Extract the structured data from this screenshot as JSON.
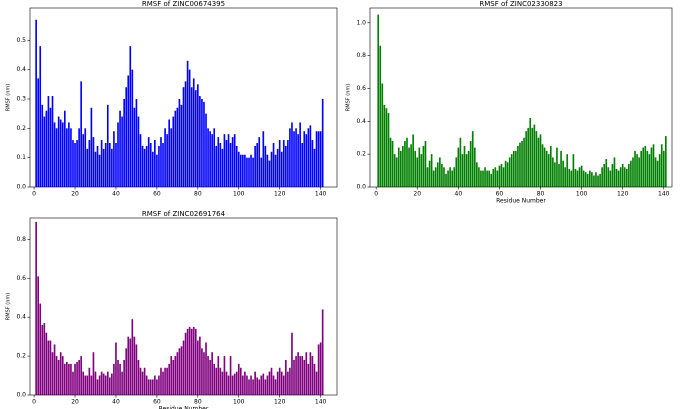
{
  "chart_data": [
    {
      "type": "bar",
      "title": "RMSF of ZINC00674395",
      "ylabel": "RMSF (nm)",
      "color": "#0000ff",
      "x": [
        1,
        2,
        3,
        4,
        5,
        6,
        7,
        8,
        9,
        10,
        11,
        12,
        13,
        14,
        15,
        16,
        17,
        18,
        19,
        20,
        21,
        22,
        23,
        24,
        25,
        26,
        27,
        28,
        29,
        30,
        31,
        32,
        33,
        34,
        35,
        36,
        37,
        38,
        39,
        40,
        41,
        42,
        43,
        44,
        45,
        46,
        47,
        48,
        49,
        50,
        51,
        52,
        53,
        54,
        55,
        56,
        57,
        58,
        59,
        60,
        61,
        62,
        63,
        64,
        65,
        66,
        67,
        68,
        69,
        70,
        71,
        72,
        73,
        74,
        75,
        76,
        77,
        78,
        79,
        80,
        81,
        82,
        83,
        84,
        85,
        86,
        87,
        88,
        89,
        90,
        91,
        92,
        93,
        94,
        95,
        96,
        97,
        98,
        99,
        100,
        101,
        102,
        103,
        104,
        105,
        106,
        107,
        108,
        109,
        110,
        111,
        112,
        113,
        114,
        115,
        116,
        117,
        118,
        119,
        120,
        121,
        122,
        123,
        124,
        125,
        126,
        127,
        128,
        129,
        130,
        131,
        132,
        133,
        134,
        135,
        136,
        137,
        138,
        139,
        140,
        141
      ],
      "values": [
        0.57,
        0.37,
        0.48,
        0.28,
        0.24,
        0.26,
        0.31,
        0.27,
        0.31,
        0.22,
        0.2,
        0.24,
        0.23,
        0.22,
        0.26,
        0.2,
        0.22,
        0.2,
        0.16,
        0.15,
        0.16,
        0.2,
        0.36,
        0.18,
        0.2,
        0.13,
        0.16,
        0.27,
        0.17,
        0.12,
        0.14,
        0.11,
        0.16,
        0.13,
        0.15,
        0.28,
        0.15,
        0.13,
        0.19,
        0.15,
        0.22,
        0.26,
        0.24,
        0.3,
        0.34,
        0.38,
        0.48,
        0.4,
        0.27,
        0.3,
        0.24,
        0.18,
        0.14,
        0.13,
        0.14,
        0.17,
        0.15,
        0.12,
        0.16,
        0.11,
        0.14,
        0.17,
        0.15,
        0.2,
        0.18,
        0.23,
        0.2,
        0.24,
        0.26,
        0.27,
        0.3,
        0.28,
        0.34,
        0.36,
        0.43,
        0.4,
        0.34,
        0.37,
        0.33,
        0.35,
        0.31,
        0.3,
        0.29,
        0.25,
        0.2,
        0.19,
        0.18,
        0.2,
        0.14,
        0.17,
        0.15,
        0.13,
        0.18,
        0.16,
        0.18,
        0.15,
        0.17,
        0.18,
        0.14,
        0.12,
        0.11,
        0.11,
        0.11,
        0.1,
        0.1,
        0.11,
        0.1,
        0.14,
        0.15,
        0.17,
        0.1,
        0.19,
        0.14,
        0.11,
        0.09,
        0.12,
        0.15,
        0.11,
        0.13,
        0.16,
        0.12,
        0.16,
        0.14,
        0.16,
        0.2,
        0.22,
        0.19,
        0.2,
        0.18,
        0.22,
        0.15,
        0.19,
        0.18,
        0.2,
        0.21,
        0.16,
        0.13,
        0.19,
        0.19,
        0.19,
        0.3
      ],
      "xlim": [
        -2,
        148
      ],
      "xticks": [
        0,
        20,
        40,
        60,
        80,
        100,
        120,
        140
      ],
      "ylim": [
        0,
        0.61
      ],
      "yticks": [
        {
          "value": 0,
          "label": "0.0"
        },
        0.1,
        0.2,
        0.3,
        0.4,
        0.5
      ]
    },
    {
      "type": "bar",
      "title": "RMSF of ZINC02330823",
      "ylabel": "RMSF (nm)",
      "xlabel": "Residue Number",
      "color": "#008000",
      "x": [
        1,
        2,
        3,
        4,
        5,
        6,
        7,
        8,
        9,
        10,
        11,
        12,
        13,
        14,
        15,
        16,
        17,
        18,
        19,
        20,
        21,
        22,
        23,
        24,
        25,
        26,
        27,
        28,
        29,
        30,
        31,
        32,
        33,
        34,
        35,
        36,
        37,
        38,
        39,
        40,
        41,
        42,
        43,
        44,
        45,
        46,
        47,
        48,
        49,
        50,
        51,
        52,
        53,
        54,
        55,
        56,
        57,
        58,
        59,
        60,
        61,
        62,
        63,
        64,
        65,
        66,
        67,
        68,
        69,
        70,
        71,
        72,
        73,
        74,
        75,
        76,
        77,
        78,
        79,
        80,
        81,
        82,
        83,
        84,
        85,
        86,
        87,
        88,
        89,
        90,
        91,
        92,
        93,
        94,
        95,
        96,
        97,
        98,
        99,
        100,
        101,
        102,
        103,
        104,
        105,
        106,
        107,
        108,
        109,
        110,
        111,
        112,
        113,
        114,
        115,
        116,
        117,
        118,
        119,
        120,
        121,
        122,
        123,
        124,
        125,
        126,
        127,
        128,
        129,
        130,
        131,
        132,
        133,
        134,
        135,
        136,
        137,
        138,
        139,
        140,
        141
      ],
      "values": [
        1.05,
        0.86,
        0.63,
        0.5,
        0.48,
        0.45,
        0.3,
        0.28,
        0.2,
        0.18,
        0.24,
        0.22,
        0.25,
        0.28,
        0.3,
        0.24,
        0.26,
        0.32,
        0.22,
        0.18,
        0.24,
        0.2,
        0.25,
        0.28,
        0.12,
        0.16,
        0.2,
        0.1,
        0.12,
        0.15,
        0.18,
        0.14,
        0.12,
        0.08,
        0.1,
        0.12,
        0.1,
        0.12,
        0.18,
        0.24,
        0.3,
        0.2,
        0.25,
        0.2,
        0.22,
        0.28,
        0.34,
        0.24,
        0.15,
        0.12,
        0.1,
        0.1,
        0.12,
        0.1,
        0.1,
        0.08,
        0.11,
        0.12,
        0.1,
        0.13,
        0.14,
        0.12,
        0.16,
        0.15,
        0.18,
        0.2,
        0.22,
        0.22,
        0.25,
        0.27,
        0.28,
        0.3,
        0.34,
        0.36,
        0.42,
        0.36,
        0.38,
        0.34,
        0.3,
        0.32,
        0.26,
        0.24,
        0.22,
        0.2,
        0.25,
        0.18,
        0.15,
        0.24,
        0.14,
        0.22,
        0.16,
        0.12,
        0.2,
        0.11,
        0.1,
        0.2,
        0.11,
        0.1,
        0.12,
        0.13,
        0.1,
        0.09,
        0.08,
        0.1,
        0.09,
        0.07,
        0.09,
        0.07,
        0.08,
        0.12,
        0.14,
        0.17,
        0.12,
        0.1,
        0.14,
        0.18,
        0.11,
        0.1,
        0.12,
        0.14,
        0.12,
        0.11,
        0.14,
        0.16,
        0.18,
        0.22,
        0.2,
        0.18,
        0.22,
        0.24,
        0.25,
        0.22,
        0.2,
        0.24,
        0.26,
        0.18,
        0.16,
        0.2,
        0.26,
        0.22,
        0.31
      ],
      "xlim": [
        -3,
        144
      ],
      "xticks": [
        0,
        20,
        40,
        60,
        80,
        100,
        120,
        140
      ],
      "ylim": [
        0,
        1.09
      ],
      "yticks": [
        {
          "value": 0,
          "label": "0.0"
        },
        0.2,
        0.4,
        0.6,
        0.8,
        {
          "value": 1,
          "label": "1.0"
        }
      ]
    },
    {
      "type": "bar",
      "title": "RMSF of ZINC02691764",
      "ylabel": "RMSF (nm)",
      "xlabel": "Residue Number",
      "color": "#800080",
      "x": [
        1,
        2,
        3,
        4,
        5,
        6,
        7,
        8,
        9,
        10,
        11,
        12,
        13,
        14,
        15,
        16,
        17,
        18,
        19,
        20,
        21,
        22,
        23,
        24,
        25,
        26,
        27,
        28,
        29,
        30,
        31,
        32,
        33,
        34,
        35,
        36,
        37,
        38,
        39,
        40,
        41,
        42,
        43,
        44,
        45,
        46,
        47,
        48,
        49,
        50,
        51,
        52,
        53,
        54,
        55,
        56,
        57,
        58,
        59,
        60,
        61,
        62,
        63,
        64,
        65,
        66,
        67,
        68,
        69,
        70,
        71,
        72,
        73,
        74,
        75,
        76,
        77,
        78,
        79,
        80,
        81,
        82,
        83,
        84,
        85,
        86,
        87,
        88,
        89,
        90,
        91,
        92,
        93,
        94,
        95,
        96,
        97,
        98,
        99,
        100,
        101,
        102,
        103,
        104,
        105,
        106,
        107,
        108,
        109,
        110,
        111,
        112,
        113,
        114,
        115,
        116,
        117,
        118,
        119,
        120,
        121,
        122,
        123,
        124,
        125,
        126,
        127,
        128,
        129,
        130,
        131,
        132,
        133,
        134,
        135,
        136,
        137,
        138,
        139,
        140,
        141
      ],
      "values": [
        0.89,
        0.61,
        0.47,
        0.36,
        0.37,
        0.32,
        0.28,
        0.28,
        0.22,
        0.26,
        0.2,
        0.18,
        0.22,
        0.2,
        0.16,
        0.17,
        0.16,
        0.16,
        0.12,
        0.16,
        0.17,
        0.18,
        0.2,
        0.12,
        0.1,
        0.1,
        0.14,
        0.1,
        0.22,
        0.12,
        0.08,
        0.1,
        0.12,
        0.11,
        0.1,
        0.12,
        0.09,
        0.11,
        0.16,
        0.27,
        0.18,
        0.16,
        0.12,
        0.18,
        0.24,
        0.3,
        0.29,
        0.39,
        0.3,
        0.26,
        0.18,
        0.14,
        0.12,
        0.14,
        0.1,
        0.08,
        0.08,
        0.08,
        0.1,
        0.08,
        0.1,
        0.14,
        0.12,
        0.14,
        0.14,
        0.16,
        0.2,
        0.18,
        0.2,
        0.22,
        0.24,
        0.25,
        0.28,
        0.32,
        0.34,
        0.35,
        0.34,
        0.35,
        0.34,
        0.28,
        0.3,
        0.24,
        0.22,
        0.27,
        0.2,
        0.18,
        0.22,
        0.16,
        0.14,
        0.2,
        0.14,
        0.12,
        0.2,
        0.12,
        0.1,
        0.2,
        0.1,
        0.11,
        0.12,
        0.16,
        0.14,
        0.1,
        0.12,
        0.1,
        0.08,
        0.1,
        0.08,
        0.12,
        0.09,
        0.08,
        0.1,
        0.11,
        0.08,
        0.1,
        0.12,
        0.14,
        0.1,
        0.08,
        0.12,
        0.14,
        0.12,
        0.1,
        0.18,
        0.12,
        0.14,
        0.32,
        0.18,
        0.2,
        0.22,
        0.2,
        0.2,
        0.18,
        0.22,
        0.16,
        0.22,
        0.2,
        0.16,
        0.12,
        0.26,
        0.27,
        0.44
      ],
      "xlim": [
        -2,
        148
      ],
      "xticks": [
        0,
        20,
        40,
        60,
        80,
        100,
        120,
        140
      ],
      "ylim": [
        0,
        0.91
      ],
      "yticks": [
        {
          "value": 0,
          "label": "0.0"
        },
        0.2,
        0.4,
        0.6,
        0.8
      ]
    }
  ]
}
